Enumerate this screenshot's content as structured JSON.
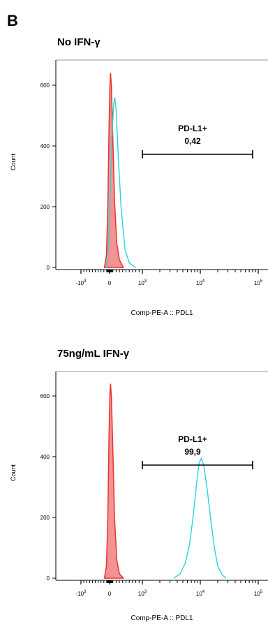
{
  "panel_letter": "B",
  "colors": {
    "control": "#e8322d",
    "control_fill": "#f08080",
    "stained": "#27d6d9",
    "axis": "#000000"
  },
  "chart_data": [
    {
      "type": "area",
      "title": "No IFN-γ",
      "xlabel": "Comp-PE-A :: PDL1",
      "ylabel": "Count",
      "x_scale": "biexponential",
      "ylim": [
        0,
        650
      ],
      "y_ticks": [
        0,
        200,
        400,
        600
      ],
      "x_ticks": [
        {
          "label_base": "-10",
          "label_exp": "3",
          "value": -1000
        },
        {
          "label_base": "0",
          "label_exp": "",
          "value": 0
        },
        {
          "label_base": "10",
          "label_exp": "3",
          "value": 1000
        },
        {
          "label_base": "10",
          "label_exp": "4",
          "value": 10000
        },
        {
          "label_base": "10",
          "label_exp": "5",
          "value": 100000
        }
      ],
      "gate": {
        "name": "PD-L1+",
        "value": "0,42",
        "x_range": [
          1000,
          80000
        ]
      },
      "series": [
        {
          "role": "control",
          "filled": true,
          "points": [
            [
              -180,
              0
            ],
            [
              -110,
              40
            ],
            [
              -60,
              200
            ],
            [
              -20,
              460
            ],
            [
              10,
              600
            ],
            [
              30,
              640
            ],
            [
              55,
              600
            ],
            [
              95,
              440
            ],
            [
              150,
              220
            ],
            [
              220,
              80
            ],
            [
              300,
              25
            ],
            [
              420,
              0
            ]
          ]
        },
        {
          "role": "stained",
          "filled": false,
          "points": [
            [
              -110,
              0
            ],
            [
              -30,
              80
            ],
            [
              40,
              320
            ],
            [
              90,
              470
            ],
            [
              130,
              540
            ],
            [
              160,
              560
            ],
            [
              200,
              520
            ],
            [
              260,
              380
            ],
            [
              350,
              200
            ],
            [
              470,
              60
            ],
            [
              600,
              15
            ],
            [
              800,
              0
            ]
          ]
        }
      ]
    },
    {
      "type": "area",
      "title": "75ng/mL IFN-γ",
      "xlabel": "Comp-PE-A :: PDL1",
      "ylabel": "Count",
      "x_scale": "biexponential",
      "ylim": [
        0,
        650
      ],
      "y_ticks": [
        0,
        200,
        400,
        600
      ],
      "x_ticks": [
        {
          "label_base": "-10",
          "label_exp": "3",
          "value": -1000
        },
        {
          "label_base": "0",
          "label_exp": "",
          "value": 0
        },
        {
          "label_base": "10",
          "label_exp": "3",
          "value": 1000
        },
        {
          "label_base": "10",
          "label_exp": "4",
          "value": 10000
        },
        {
          "label_base": "10",
          "label_exp": "5",
          "value": 100000
        }
      ],
      "gate": {
        "name": "PD-L1+",
        "value": "99,9",
        "x_range": [
          1000,
          80000
        ]
      },
      "series": [
        {
          "role": "control",
          "filled": true,
          "points": [
            [
              -180,
              0
            ],
            [
              -110,
              40
            ],
            [
              -60,
              200
            ],
            [
              -20,
              470
            ],
            [
              10,
              610
            ],
            [
              30,
              640
            ],
            [
              55,
              600
            ],
            [
              95,
              440
            ],
            [
              150,
              200
            ],
            [
              220,
              60
            ],
            [
              300,
              15
            ],
            [
              420,
              0
            ]
          ]
        },
        {
          "role": "stained",
          "filled": false,
          "points": [
            [
              3500,
              0
            ],
            [
              4500,
              15
            ],
            [
              5500,
              50
            ],
            [
              6500,
              110
            ],
            [
              7500,
              200
            ],
            [
              8500,
              300
            ],
            [
              9500,
              380
            ],
            [
              10500,
              395
            ],
            [
              11500,
              370
            ],
            [
              13000,
              300
            ],
            [
              15000,
              200
            ],
            [
              17500,
              100
            ],
            [
              20000,
              40
            ],
            [
              24000,
              10
            ],
            [
              28000,
              0
            ]
          ]
        }
      ]
    }
  ]
}
